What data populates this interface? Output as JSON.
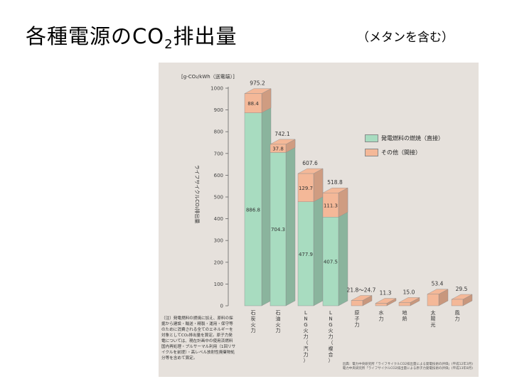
{
  "slide": {
    "title_main": "各種電源のCO",
    "title_sub": "2",
    "title_tail": "排出量",
    "subtitle": "（メタンを含む）"
  },
  "figure": {
    "note": "（注）発電燃料の燃焼に加え、原料の採掘から建設・輸送・精製・運用・保守等のために消費される全てのエネルギーを対象としてCO₂排出量を算定。原子力発電については、現在計画中の使用済燃料国内再処理・プルサーマル利用（1回リサイクルを前提）・高レベル放射性廃棄物処分等を含めて算定。",
    "source_line1": "出典：電力中央研究所「ライフサイクルCO2排出量による発電技術の評価」(平成12年3月)",
    "source_line2": "電力中央研究所「ライフサイクルCO2排出量による原子力発電技術の評価」(平成13年8月)"
  },
  "chart_data": {
    "type": "bar",
    "stacked": true,
    "ylabel": "ライフサイクルCO₂排出量",
    "yunit": "[g-CO₂/kWh（送電端）]",
    "ylim": [
      0,
      1000
    ],
    "yticks": [
      0,
      100,
      200,
      300,
      400,
      500,
      600,
      700,
      800,
      900,
      1000
    ],
    "grid": false,
    "legend_position": "right",
    "categories": [
      "石炭火力",
      "石油火力",
      "LNG火力（汽力）",
      "LNG火力（複合）",
      "原子力",
      "水力",
      "地熱",
      "太陽光",
      "風力"
    ],
    "series": [
      {
        "name": "発電燃料の燃焼（直接）",
        "color": "#a8dcc0",
        "values": [
          886.8,
          704.3,
          477.9,
          407.5,
          0,
          0,
          0,
          0,
          0
        ]
      },
      {
        "name": "その他（間接）",
        "color": "#f4b898",
        "values": [
          88.4,
          37.8,
          129.7,
          111.3,
          24.7,
          11.3,
          15.0,
          53.4,
          29.5
        ]
      }
    ],
    "totals": [
      975.2,
      742.1,
      607.6,
      518.8,
      24.7,
      11.3,
      15.0,
      53.4,
      29.5
    ],
    "total_labels": [
      "975.2",
      "742.1",
      "607.6",
      "518.8",
      "21.8〜24.7",
      "11.3",
      "15.0",
      "53.4",
      "29.5"
    ],
    "direct_labels": [
      "886.8",
      "704.3",
      "477.9",
      "407.5"
    ],
    "indirect_labels": [
      "88.4",
      "37.8",
      "129.7",
      "111.3"
    ]
  }
}
